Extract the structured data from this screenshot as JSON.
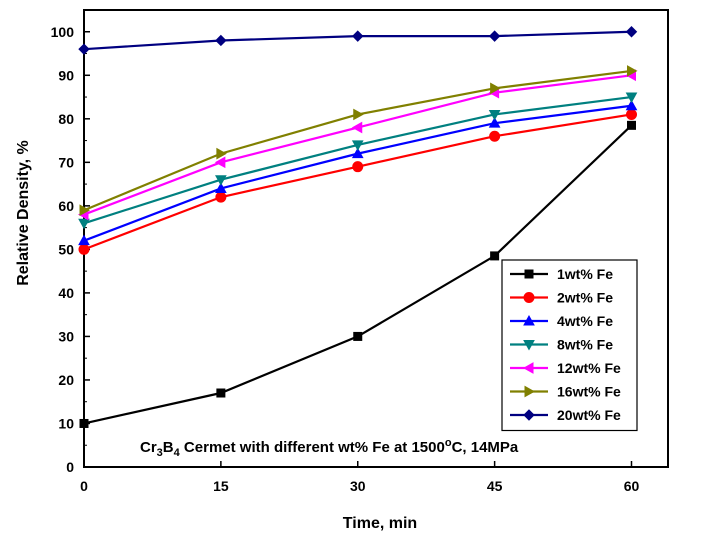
{
  "chart_data": {
    "type": "line",
    "x": [
      0,
      15,
      30,
      45,
      60
    ],
    "xlabel": "Time, min",
    "ylabel": "Relative Density, %",
    "xlim": [
      0,
      64
    ],
    "ylim": [
      0,
      105
    ],
    "xticks": [
      "0",
      "15",
      "30",
      "45",
      "60"
    ],
    "yticks": [
      "0",
      "10",
      "20",
      "30",
      "40",
      "50",
      "60",
      "70",
      "80",
      "90",
      "100"
    ],
    "legend_position": "bottom-right",
    "annotation": {
      "p1": "Cr",
      "s1": "3",
      "p2": "B",
      "s2": "4",
      "p3": " Cermet with different wt% Fe at 1500",
      "sup": "o",
      "p4": "C, 14MPa"
    },
    "series": [
      {
        "name": "1wt% Fe",
        "color": "#000000",
        "marker": "square",
        "values": [
          10,
          17,
          30,
          48.5,
          78.5
        ]
      },
      {
        "name": "2wt% Fe",
        "color": "#ff0000",
        "marker": "circle",
        "values": [
          50,
          62,
          69,
          76,
          81
        ]
      },
      {
        "name": "4wt% Fe",
        "color": "#0000ff",
        "marker": "triangle-up",
        "values": [
          52,
          64,
          72,
          79,
          83
        ]
      },
      {
        "name": "8wt% Fe",
        "color": "#008080",
        "marker": "triangle-down",
        "values": [
          56,
          66,
          74,
          81,
          85
        ]
      },
      {
        "name": "12wt% Fe",
        "color": "#ff00ff",
        "marker": "triangle-left",
        "values": [
          58,
          70,
          78,
          86,
          90
        ]
      },
      {
        "name": "16wt% Fe",
        "color": "#808000",
        "marker": "triangle-right",
        "values": [
          59,
          72,
          81,
          87,
          91
        ]
      },
      {
        "name": "20wt% Fe",
        "color": "#000080",
        "marker": "diamond",
        "values": [
          96,
          98,
          99,
          99,
          100
        ]
      }
    ]
  }
}
